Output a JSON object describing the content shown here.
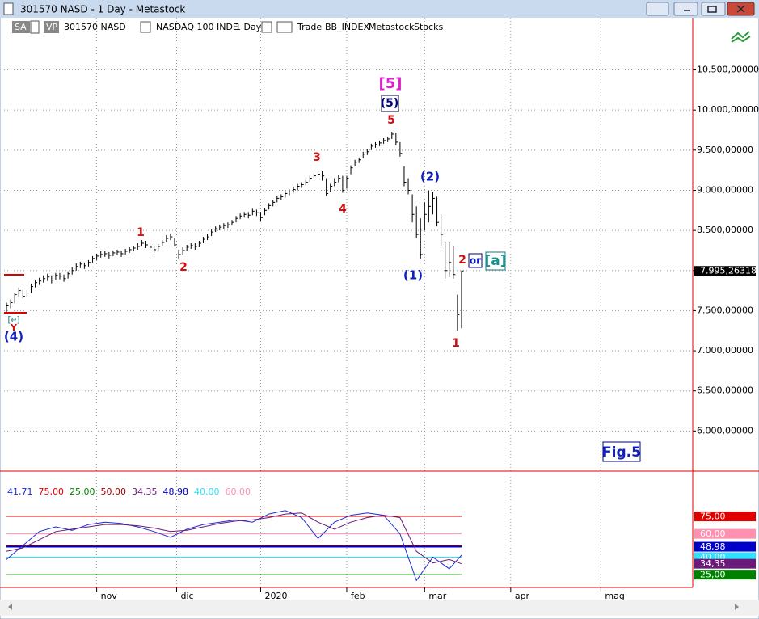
{
  "window": {
    "title": "301570 NASD - 1 Day - Metastock"
  },
  "toolbar": {
    "items": [
      "SA",
      "VP",
      "301570 NASD",
      "NASDAQ 100 INDE",
      "1 Day",
      "Trade",
      "BB_INDEX",
      "Metastock",
      "Stocks"
    ]
  },
  "annotations": [
    {
      "text": "[5]"
    },
    {
      "text": "(5)"
    },
    {
      "text": "5"
    },
    {
      "text": "3"
    },
    {
      "text": "4"
    },
    {
      "text": "1"
    },
    {
      "text": "2"
    },
    {
      "text": "(2)"
    },
    {
      "text": "(1)"
    },
    {
      "text": "2"
    },
    {
      "text": "or"
    },
    {
      "text": "[a]"
    },
    {
      "text": "1"
    },
    {
      "text": "[e]"
    },
    {
      "text": "Y"
    },
    {
      "text": "(4)"
    },
    {
      "text": "Fig.5"
    }
  ],
  "chart_data": [
    {
      "type": "ohlc",
      "color": "#000000",
      "grid": true,
      "close": [
        7560,
        7600,
        7700,
        7750,
        7680,
        7720,
        7800,
        7850,
        7870,
        7900,
        7920,
        7880,
        7940,
        7930,
        7900,
        7960,
        8000,
        8050,
        8080,
        8060,
        8100,
        8150,
        8180,
        8200,
        8210,
        8190,
        8220,
        8230,
        8210,
        8240,
        8260,
        8280,
        8300,
        8340,
        8320,
        8290,
        8260,
        8300,
        8350,
        8400,
        8420,
        8320,
        8200,
        8250,
        8290,
        8310,
        8300,
        8340,
        8390,
        8420,
        8480,
        8520,
        8540,
        8560,
        8570,
        8600,
        8650,
        8680,
        8700,
        8690,
        8740,
        8720,
        8660,
        8750,
        8810,
        8850,
        8900,
        8920,
        8960,
        8980,
        9010,
        9050,
        9070,
        9100,
        9150,
        9180,
        9200,
        9180,
        8960,
        9050,
        9100,
        9150,
        9000,
        9150,
        9280,
        9350,
        9380,
        9450,
        9480,
        9550,
        9570,
        9590,
        9620,
        9640,
        9700,
        9600,
        9460,
        9100,
        9000,
        8700,
        8450,
        8200,
        8700,
        8800,
        8900,
        8600,
        8450,
        8000,
        8100,
        7950,
        7450,
        7995.26318
      ],
      "high": [
        7600,
        7640,
        7720,
        7790,
        7760,
        7760,
        7830,
        7880,
        7910,
        7940,
        7960,
        7940,
        7970,
        7970,
        7950,
        7990,
        8040,
        8090,
        8110,
        8100,
        8130,
        8180,
        8210,
        8240,
        8240,
        8230,
        8250,
        8260,
        8250,
        8270,
        8290,
        8310,
        8340,
        8380,
        8370,
        8330,
        8300,
        8330,
        8380,
        8440,
        8460,
        8400,
        8260,
        8290,
        8320,
        8340,
        8340,
        8370,
        8420,
        8460,
        8510,
        8550,
        8570,
        8590,
        8600,
        8630,
        8680,
        8710,
        8730,
        8730,
        8770,
        8760,
        8730,
        8780,
        8840,
        8880,
        8930,
        8950,
        8990,
        9010,
        9040,
        9080,
        9100,
        9130,
        9180,
        9210,
        9270,
        9240,
        9150,
        9080,
        9150,
        9190,
        9180,
        9180,
        9310,
        9380,
        9410,
        9480,
        9510,
        9580,
        9600,
        9620,
        9650,
        9670,
        9730,
        9720,
        9600,
        9300,
        9150,
        8950,
        8800,
        8650,
        8850,
        9000,
        8980,
        8920,
        8700,
        8350,
        8350,
        8300,
        7700,
        8000
      ],
      "low": [
        7480,
        7530,
        7590,
        7680,
        7650,
        7670,
        7720,
        7790,
        7820,
        7850,
        7870,
        7840,
        7880,
        7890,
        7860,
        7900,
        7950,
        8000,
        8030,
        8020,
        8050,
        8100,
        8130,
        8160,
        8170,
        8150,
        8180,
        8190,
        8170,
        8200,
        8220,
        8240,
        8260,
        8300,
        8280,
        8250,
        8220,
        8250,
        8300,
        8350,
        8380,
        8300,
        8150,
        8190,
        8240,
        8270,
        8260,
        8290,
        8340,
        8380,
        8430,
        8480,
        8500,
        8520,
        8530,
        8560,
        8600,
        8640,
        8660,
        8650,
        8690,
        8680,
        8620,
        8690,
        8760,
        8800,
        8850,
        8880,
        8910,
        8940,
        8970,
        9000,
        9030,
        9060,
        9100,
        9140,
        9160,
        9120,
        8930,
        8980,
        9050,
        9100,
        8970,
        9020,
        9200,
        9300,
        9340,
        9400,
        9440,
        9500,
        9530,
        9550,
        9580,
        9600,
        9640,
        9560,
        9420,
        9050,
        8950,
        8600,
        8400,
        8150,
        8500,
        8600,
        8700,
        8550,
        8300,
        7900,
        7920,
        7900,
        7250,
        7280
      ],
      "last_price": {
        "value": 7995.26318,
        "label": "7.995,26318"
      },
      "xlim": [
        -0.6,
        167.4
      ],
      "xticks": [
        {
          "value": 22,
          "label": "nov"
        },
        {
          "value": 41.5,
          "label": "dic"
        },
        {
          "value": 62,
          "label": "2020"
        },
        {
          "value": 83,
          "label": "feb"
        },
        {
          "value": 102,
          "label": "mar"
        },
        {
          "value": 123,
          "label": "apr"
        },
        {
          "value": 145,
          "label": "mag"
        }
      ],
      "ylim": [
        5500,
        11150
      ],
      "yticks": [
        {
          "value": 6000,
          "label": "6.000,00000"
        },
        {
          "value": 6500,
          "label": "6.500,00000"
        },
        {
          "value": 7000,
          "label": "7.000,00000"
        },
        {
          "value": 7500,
          "label": "7.500,00000"
        },
        {
          "value": 8000,
          "label": "8.000,00000"
        },
        {
          "value": 8500,
          "label": "8.500,00000"
        },
        {
          "value": 9000,
          "label": "9.000,00000"
        },
        {
          "value": 9500,
          "label": "9.500,00000"
        },
        {
          "value": 10000,
          "label": "10.000,00000"
        },
        {
          "value": 10500,
          "label": "10.500,00000"
        }
      ]
    },
    {
      "type": "line",
      "xlim": [
        -0.6,
        167.4
      ],
      "ylim": [
        14,
        109
      ],
      "x": [
        0,
        4,
        8,
        12,
        16,
        20,
        24,
        28,
        32,
        36,
        40,
        44,
        48,
        52,
        56,
        60,
        64,
        68,
        72,
        76,
        80,
        84,
        88,
        92,
        96,
        100,
        104,
        108,
        111
      ],
      "series": [
        {
          "name": "41,71",
          "color": "#1c2fd0",
          "values": [
            38,
            50,
            62,
            66,
            63,
            68,
            70,
            69,
            66,
            62,
            57,
            64,
            68,
            70,
            72,
            70,
            77,
            80,
            74,
            56,
            70,
            76,
            78,
            76,
            60,
            20,
            40,
            30,
            41.71
          ]
        },
        {
          "name": "34,35",
          "color": "#6a1a78",
          "tag": true,
          "values": [
            45,
            48,
            55,
            62,
            64,
            66,
            68,
            68,
            67,
            65,
            62,
            63,
            66,
            69,
            71,
            72,
            74,
            77,
            78,
            70,
            64,
            70,
            74,
            76,
            74,
            45,
            35,
            38,
            34.35
          ]
        }
      ],
      "levels": [
        {
          "value": 75,
          "label": "75,00",
          "color": "#e00000",
          "tag": true
        },
        {
          "value": 25,
          "label": "25,00",
          "color": "#008000",
          "tag": true
        },
        {
          "value": 50,
          "label": "50,00",
          "color": "#a00000",
          "tag": false
        },
        {
          "value": 48.98,
          "label": "48,98",
          "color": "#0000c8",
          "tag": true
        },
        {
          "value": 40,
          "label": "40,00",
          "color": "#30e0ff",
          "tag": true
        },
        {
          "value": 60,
          "label": "60,00",
          "color": "#ff90b0",
          "tag": true
        }
      ]
    }
  ]
}
